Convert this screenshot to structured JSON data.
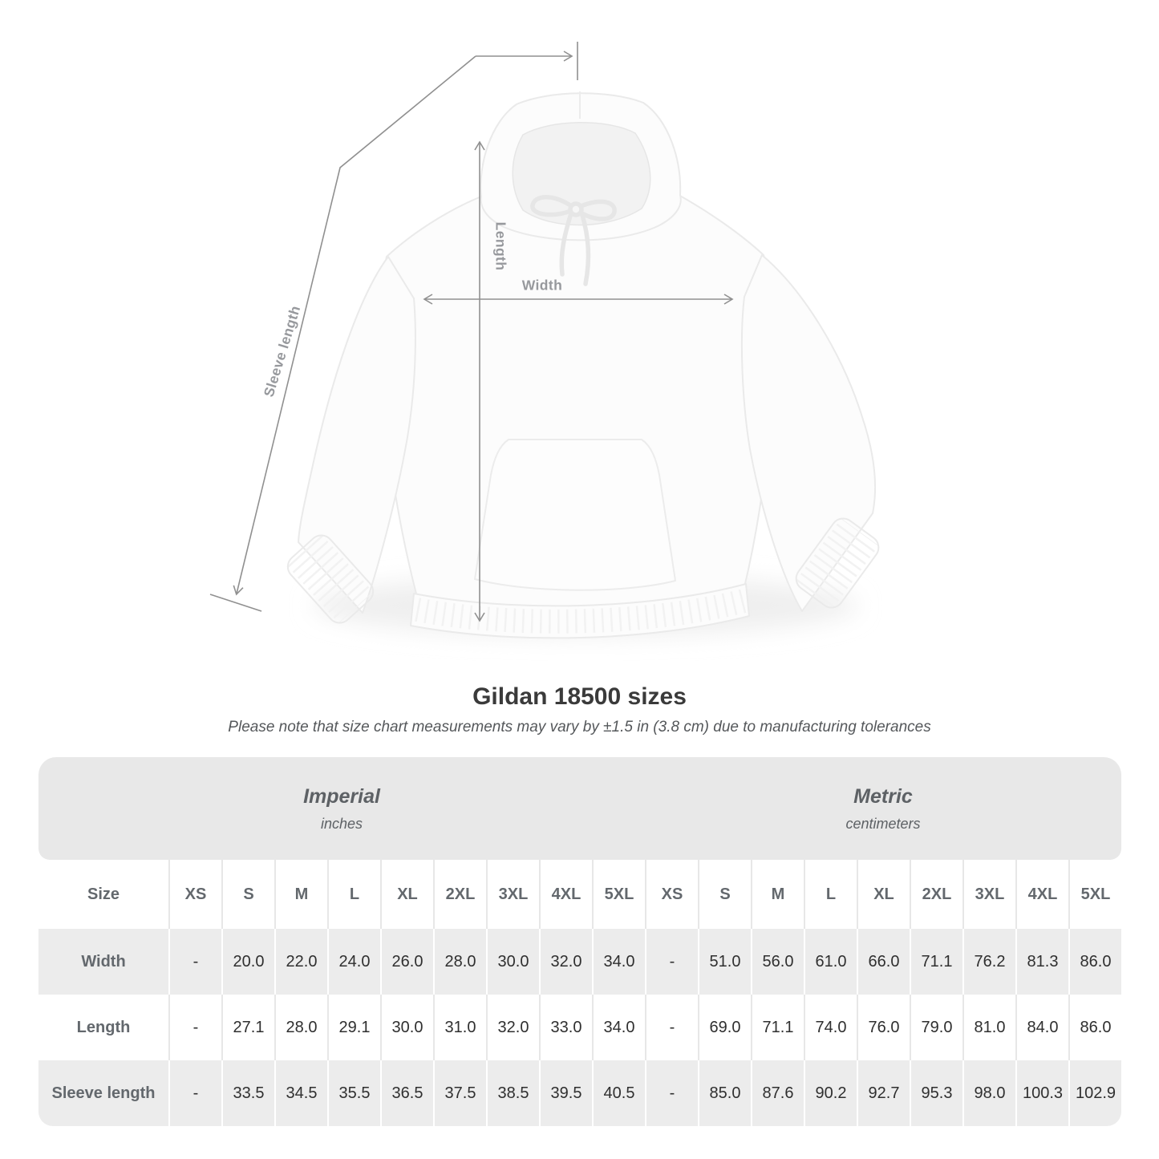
{
  "figure": {
    "labels": {
      "length": "Length",
      "width": "Width",
      "sleeve": "Sleeve length"
    }
  },
  "title": "Gildan 18500 sizes",
  "subtitle": "Please note that size chart measurements may vary by ±1.5 in (3.8 cm) due to manufacturing tolerances",
  "table": {
    "groups": [
      {
        "label": "Imperial",
        "sublabel": "inches"
      },
      {
        "label": "Metric",
        "sublabel": "centimeters"
      }
    ],
    "size_header": "Size",
    "sizes": [
      "XS",
      "S",
      "M",
      "L",
      "XL",
      "2XL",
      "3XL",
      "4XL",
      "5XL"
    ],
    "rows": [
      {
        "label": "Width",
        "imperial": [
          "-",
          "20.0",
          "22.0",
          "24.0",
          "26.0",
          "28.0",
          "30.0",
          "32.0",
          "34.0"
        ],
        "metric": [
          "-",
          "51.0",
          "56.0",
          "61.0",
          "66.0",
          "71.1",
          "76.2",
          "81.3",
          "86.0"
        ]
      },
      {
        "label": "Length",
        "imperial": [
          "-",
          "27.1",
          "28.0",
          "29.1",
          "30.0",
          "31.0",
          "32.0",
          "33.0",
          "34.0"
        ],
        "metric": [
          "-",
          "69.0",
          "71.1",
          "74.0",
          "76.0",
          "79.0",
          "81.0",
          "84.0",
          "86.0"
        ]
      },
      {
        "label": "Sleeve length",
        "imperial": [
          "-",
          "33.5",
          "34.5",
          "35.5",
          "36.5",
          "37.5",
          "38.5",
          "39.5",
          "40.5"
        ],
        "metric": [
          "-",
          "85.0",
          "87.6",
          "90.2",
          "92.7",
          "95.3",
          "98.0",
          "100.3",
          "102.9"
        ]
      }
    ]
  },
  "colors": {
    "band_bg": "#e8e8e8",
    "row_alt_bg": "#ececec",
    "value_text": "#2f2f2f",
    "header_text": "#63686d",
    "measure_line": "#909090",
    "measure_label": "#97999d"
  }
}
